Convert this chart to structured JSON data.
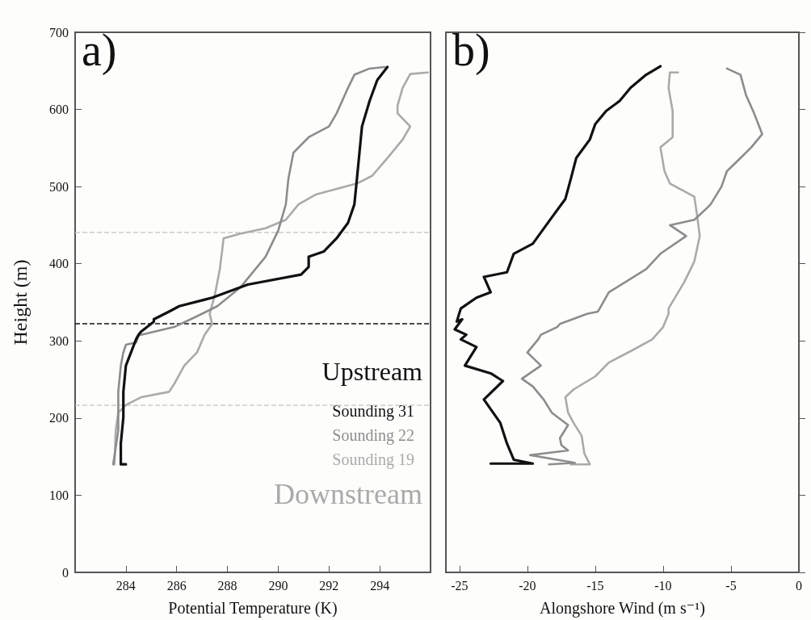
{
  "chart_data": [
    {
      "type": "line",
      "ylabel": "Height (m)",
      "xlabel": "Potential Temperature (K)",
      "xlim": [
        282,
        296
      ],
      "xticks": [
        284,
        286,
        288,
        290,
        292,
        294
      ],
      "ylim": [
        0,
        700
      ],
      "yticks": [
        0,
        100,
        200,
        300,
        400,
        500,
        600,
        700
      ],
      "grid": false,
      "legend": "bottom right",
      "marker": "none",
      "line_style": "solid",
      "annotations": [
        "a)",
        "Upstream",
        "Downstream"
      ],
      "ref_lines": [
        {
          "axis": "y",
          "value": 441,
          "color": "#cccccc",
          "line_style": "dashed"
        },
        {
          "axis": "y",
          "value": 323,
          "color": "#111111",
          "line_style": "dashed"
        },
        {
          "axis": "y",
          "value": 217,
          "color": "#cccccc",
          "line_style": "dashed"
        }
      ],
      "series": [
        {
          "name": "Sounding 31",
          "color": "#111111",
          "x": [
            284.0,
            283.8,
            283.8,
            283.9,
            283.9,
            284.0,
            284.4,
            284.5,
            284.6,
            285.1,
            285.1,
            285.7,
            286.1,
            287.4,
            288.8,
            290.9,
            291.2,
            291.2,
            291.8,
            292.3,
            292.75,
            293.0,
            293.1,
            293.2,
            293.3,
            293.6,
            293.9,
            294.3
          ],
          "values": [
            140,
            140,
            167,
            201,
            234,
            268,
            302,
            308,
            312,
            325,
            328,
            338,
            345,
            356,
            373,
            386,
            396,
            409,
            416,
            433,
            453,
            477,
            510,
            544,
            578,
            611,
            638,
            655
          ]
        },
        {
          "name": "Sounding 22",
          "color": "#8c8c8c",
          "x": [
            283.5,
            283.7,
            283.7,
            283.8,
            283.9,
            284.0,
            284.4,
            284.5,
            285.9,
            286.8,
            287.6,
            288.5,
            289.5,
            290.0,
            290.3,
            290.4,
            290.6,
            291.2,
            292.0,
            292.3,
            292.75,
            293.0,
            293.6,
            294.2
          ],
          "values": [
            140,
            184,
            234,
            268,
            285,
            295,
            298,
            307,
            318,
            332,
            345,
            369,
            409,
            443,
            477,
            510,
            544,
            564,
            578,
            595,
            628,
            645,
            653,
            655
          ]
        },
        {
          "name": "Sounding 19",
          "color": "#aaaaaa",
          "x": [
            283.55,
            283.6,
            283.7,
            284.0,
            284.6,
            285.7,
            285.9,
            286.3,
            286.8,
            287.1,
            287.4,
            287.3,
            287.5,
            287.7,
            287.85,
            288.5,
            289.5,
            290.3,
            290.8,
            291.5,
            293.1,
            293.7,
            294.3,
            294.9,
            295.2,
            294.7,
            294.7,
            294.9,
            295.2,
            295.9
          ],
          "values": [
            140,
            184,
            207,
            217,
            227,
            234,
            244,
            268,
            285,
            308,
            322,
            335,
            359,
            393,
            433,
            439,
            446,
            457,
            477,
            490,
            504,
            514,
            537,
            561,
            578,
            595,
            605,
            628,
            646,
            648
          ]
        }
      ]
    },
    {
      "type": "line",
      "xlabel": "Alongshore Wind (m s⁻¹)",
      "xlim": [
        -26,
        0
      ],
      "xticks": [
        -25,
        -20,
        -15,
        -10,
        -5,
        0
      ],
      "ylim": [
        0,
        700
      ],
      "yticks": [
        0,
        100,
        200,
        300,
        400,
        500,
        600,
        700
      ],
      "tick_labels": "x",
      "grid": false,
      "marker": "none",
      "line_style": "solid",
      "annotations": [
        "b)"
      ],
      "series": [
        {
          "color": "#111111",
          "x": [
            -22.7,
            -19.6,
            -21.0,
            -21.5,
            -22.0,
            -23.2,
            -21.8,
            -22.7,
            -24.6,
            -23.75,
            -24.9,
            -24.5,
            -25.35,
            -24.8,
            -25.2,
            -24.9,
            -23.75,
            -22.7,
            -23.2,
            -21.5,
            -21.0,
            -19.6,
            -18.2,
            -17.2,
            -16.8,
            -16.4,
            -15.4,
            -15.0,
            -14.2,
            -13.2,
            -12.4,
            -11.25,
            -10.2
          ],
          "values": [
            141,
            141,
            146,
            167,
            194,
            224,
            248,
            258,
            268,
            292,
            302,
            308,
            315,
            328,
            325,
            342,
            356,
            363,
            383,
            389,
            413,
            426,
            460,
            484,
            510,
            537,
            561,
            581,
            598,
            611,
            628,
            645,
            656
          ]
        },
        {
          "color": "#8c8c8c",
          "x": [
            -18.4,
            -16.5,
            -19.8,
            -17.0,
            -17.5,
            -17.6,
            -17.0,
            -18.2,
            -18.8,
            -19.6,
            -20.4,
            -19.0,
            -20.0,
            -19.2,
            -19.0,
            -17.8,
            -17.6,
            -15.6,
            -14.8,
            -14.0,
            -11.25,
            -10.2,
            -8.3,
            -9.5,
            -7.7,
            -6.9,
            -6.5,
            -5.7,
            -5.3,
            -4.3,
            -3.5,
            -2.7,
            -3.3,
            -3.9,
            -4.3,
            -5.3
          ],
          "values": [
            140,
            142,
            152,
            158,
            165,
            174,
            191,
            207,
            224,
            241,
            251,
            268,
            285,
            302,
            308,
            318,
            322,
            335,
            338,
            363,
            393,
            413,
            436,
            450,
            457,
            470,
            477,
            500,
            520,
            537,
            551,
            568,
            595,
            619,
            645,
            653
          ]
        },
        {
          "color": "#aaaaaa",
          "x": [
            -16.8,
            -15.4,
            -15.8,
            -16.0,
            -16.6,
            -17.0,
            -17.2,
            -16.6,
            -15.0,
            -14.0,
            -12.25,
            -10.8,
            -10.5,
            -10.0,
            -9.6,
            -9.6,
            -8.45,
            -7.7,
            -7.3,
            -7.5,
            -7.7,
            -9.5,
            -9.9,
            -10.2,
            -9.3,
            -9.3,
            -9.6,
            -9.5,
            -8.9
          ],
          "values": [
            140,
            140,
            154,
            177,
            194,
            207,
            227,
            237,
            254,
            272,
            288,
            302,
            308,
            318,
            335,
            342,
            376,
            403,
            436,
            463,
            487,
            504,
            520,
            551,
            564,
            598,
            628,
            648,
            648
          ]
        }
      ]
    }
  ]
}
